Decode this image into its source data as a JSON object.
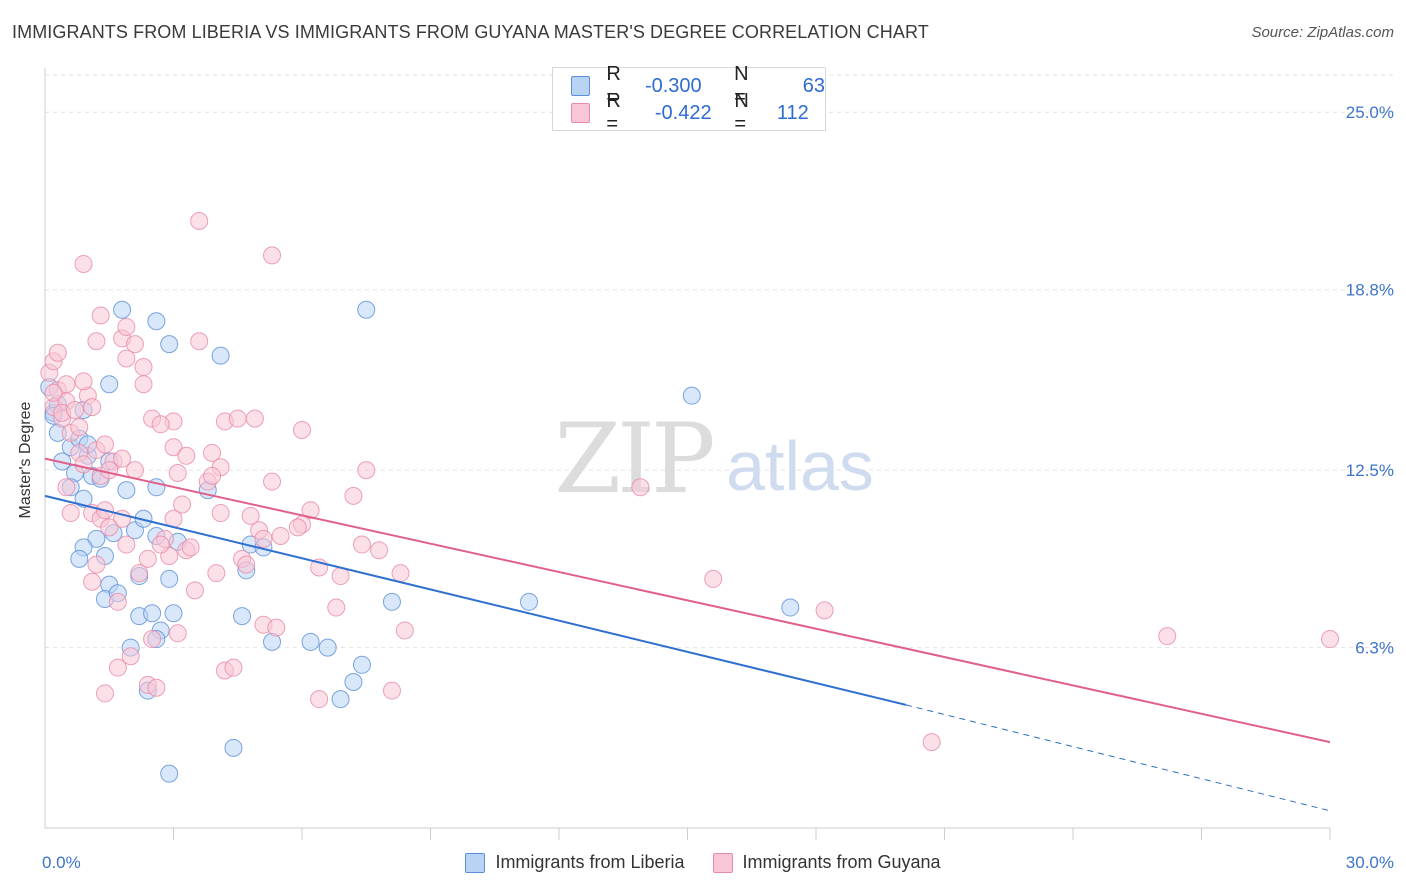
{
  "title": "IMMIGRANTS FROM LIBERIA VS IMMIGRANTS FROM GUYANA MASTER'S DEGREE CORRELATION CHART",
  "source": "Source: ZipAtlas.com",
  "watermark": {
    "zip": "ZIP",
    "atlas": "atlas"
  },
  "legend": {
    "rows": [
      {
        "r_label": "R =",
        "r_value": "-0.300",
        "n_label": "N =",
        "n_value": "63"
      },
      {
        "r_label": "R =",
        "r_value": "-0.422",
        "n_label": "N =",
        "n_value": "112"
      }
    ]
  },
  "colors": {
    "liberia_fill": "#b9d3f5",
    "liberia_stroke": "#5b8fd8",
    "liberia_line": "#2f6fd0",
    "guyana_fill": "#f8c6d6",
    "guyana_stroke": "#e88aa8",
    "guyana_line": "#e0608a",
    "grid": "#e2e2e2",
    "tick_label": "#3d74c9"
  },
  "chart_data": {
    "type": "scatter",
    "title": "IMMIGRANTS FROM LIBERIA VS IMMIGRANTS FROM GUYANA MASTER'S DEGREE CORRELATION CHART",
    "xlabel": "",
    "ylabel": "Master's Degree",
    "xlim": [
      0,
      30
    ],
    "ylim": [
      0,
      26.3
    ],
    "x_tick_labels": [
      {
        "value": 0,
        "label": "0.0%"
      },
      {
        "value": 30,
        "label": "30.0%"
      }
    ],
    "y_ticks": [
      {
        "value": 6.3,
        "label": "6.3%"
      },
      {
        "value": 12.5,
        "label": "12.5%"
      },
      {
        "value": 18.8,
        "label": "18.8%"
      },
      {
        "value": 25.0,
        "label": "25.0%"
      }
    ],
    "x_minor_ticks": [
      3,
      6,
      9,
      12,
      15,
      18,
      21,
      24,
      27,
      30
    ],
    "series": [
      {
        "name": "Immigrants from Liberia",
        "r": -0.3,
        "n": 63,
        "trend": {
          "x0": 0,
          "y0": 11.6,
          "x1": 20.1,
          "y1": 4.3,
          "dash_x_end": 30,
          "dash_y_end": 0.6
        },
        "points": [
          [
            0.1,
            15.4
          ],
          [
            0.2,
            14.5
          ],
          [
            0.3,
            14.8
          ],
          [
            0.6,
            13.3
          ],
          [
            0.4,
            12.8
          ],
          [
            0.7,
            12.4
          ],
          [
            0.8,
            13.6
          ],
          [
            0.6,
            11.9
          ],
          [
            1.0,
            13.0
          ],
          [
            1.1,
            12.3
          ],
          [
            0.9,
            11.5
          ],
          [
            1.3,
            12.2
          ],
          [
            1.5,
            12.8
          ],
          [
            1.9,
            11.8
          ],
          [
            1.6,
            10.3
          ],
          [
            1.2,
            10.1
          ],
          [
            1.4,
            9.5
          ],
          [
            0.9,
            9.8
          ],
          [
            0.8,
            9.4
          ],
          [
            2.1,
            10.4
          ],
          [
            2.3,
            10.8
          ],
          [
            2.6,
            10.2
          ],
          [
            3.1,
            10.0
          ],
          [
            1.5,
            8.5
          ],
          [
            1.4,
            8.0
          ],
          [
            1.7,
            8.2
          ],
          [
            2.2,
            8.8
          ],
          [
            2.9,
            8.7
          ],
          [
            2.2,
            7.4
          ],
          [
            2.5,
            7.5
          ],
          [
            3.0,
            7.5
          ],
          [
            4.6,
            7.4
          ],
          [
            4.8,
            9.9
          ],
          [
            5.1,
            9.8
          ],
          [
            4.7,
            9.0
          ],
          [
            2.0,
            6.3
          ],
          [
            2.7,
            6.9
          ],
          [
            2.6,
            6.6
          ],
          [
            5.3,
            6.5
          ],
          [
            6.2,
            6.5
          ],
          [
            6.6,
            6.3
          ],
          [
            7.4,
            5.7
          ],
          [
            8.1,
            7.9
          ],
          [
            7.2,
            5.1
          ],
          [
            6.9,
            4.5
          ],
          [
            11.3,
            7.9
          ],
          [
            15.1,
            15.1
          ],
          [
            17.4,
            7.7
          ],
          [
            7.5,
            18.1
          ],
          [
            4.1,
            16.5
          ],
          [
            2.6,
            17.7
          ],
          [
            2.9,
            16.9
          ],
          [
            1.8,
            18.1
          ],
          [
            1.5,
            15.5
          ],
          [
            0.9,
            14.6
          ],
          [
            1.0,
            13.4
          ],
          [
            3.8,
            11.8
          ],
          [
            2.6,
            11.9
          ],
          [
            2.4,
            4.8
          ],
          [
            4.4,
            2.8
          ],
          [
            2.9,
            1.9
          ],
          [
            0.2,
            14.4
          ],
          [
            0.3,
            13.8
          ]
        ]
      },
      {
        "name": "Immigrants from Guyana",
        "r": -0.422,
        "n": 112,
        "trend": {
          "x0": 0,
          "y0": 12.9,
          "x1": 30,
          "y1": 3.0
        },
        "points": [
          [
            0.1,
            15.9
          ],
          [
            0.2,
            16.3
          ],
          [
            0.3,
            15.3
          ],
          [
            0.2,
            14.7
          ],
          [
            0.4,
            14.3
          ],
          [
            0.5,
            14.9
          ],
          [
            0.6,
            13.8
          ],
          [
            0.3,
            16.6
          ],
          [
            0.5,
            15.5
          ],
          [
            0.8,
            13.1
          ],
          [
            1.0,
            15.1
          ],
          [
            0.9,
            15.6
          ],
          [
            1.1,
            14.7
          ],
          [
            1.2,
            13.2
          ],
          [
            1.4,
            13.4
          ],
          [
            1.3,
            12.3
          ],
          [
            0.9,
            12.7
          ],
          [
            1.6,
            12.8
          ],
          [
            1.8,
            12.9
          ],
          [
            2.1,
            12.5
          ],
          [
            1.2,
            17.0
          ],
          [
            1.8,
            17.1
          ],
          [
            2.1,
            16.9
          ],
          [
            1.9,
            16.4
          ],
          [
            1.3,
            17.9
          ],
          [
            1.9,
            17.5
          ],
          [
            2.3,
            16.1
          ],
          [
            2.3,
            15.5
          ],
          [
            2.5,
            14.3
          ],
          [
            3.0,
            14.2
          ],
          [
            0.9,
            19.7
          ],
          [
            3.6,
            21.2
          ],
          [
            5.3,
            20.0
          ],
          [
            3.6,
            17.0
          ],
          [
            4.2,
            14.2
          ],
          [
            4.5,
            14.3
          ],
          [
            4.9,
            14.3
          ],
          [
            6.0,
            13.9
          ],
          [
            3.0,
            13.3
          ],
          [
            3.3,
            13.0
          ],
          [
            3.9,
            13.1
          ],
          [
            4.1,
            12.6
          ],
          [
            3.1,
            12.4
          ],
          [
            3.8,
            12.1
          ],
          [
            5.3,
            12.1
          ],
          [
            7.2,
            11.6
          ],
          [
            7.5,
            12.5
          ],
          [
            6.2,
            11.1
          ],
          [
            6.0,
            10.6
          ],
          [
            5.0,
            10.4
          ],
          [
            5.1,
            10.1
          ],
          [
            4.1,
            11.0
          ],
          [
            3.2,
            11.3
          ],
          [
            3.0,
            10.8
          ],
          [
            2.8,
            10.1
          ],
          [
            3.3,
            9.7
          ],
          [
            2.9,
            9.5
          ],
          [
            2.4,
            9.4
          ],
          [
            1.8,
            10.8
          ],
          [
            1.9,
            9.9
          ],
          [
            1.1,
            11.0
          ],
          [
            1.3,
            10.8
          ],
          [
            1.5,
            10.5
          ],
          [
            0.6,
            11.0
          ],
          [
            1.2,
            9.2
          ],
          [
            1.1,
            8.6
          ],
          [
            1.7,
            7.9
          ],
          [
            3.5,
            8.3
          ],
          [
            4.0,
            8.9
          ],
          [
            4.6,
            9.4
          ],
          [
            4.7,
            9.2
          ],
          [
            5.5,
            10.2
          ],
          [
            6.4,
            9.1
          ],
          [
            6.9,
            8.8
          ],
          [
            7.4,
            9.9
          ],
          [
            7.8,
            9.7
          ],
          [
            8.3,
            8.9
          ],
          [
            6.8,
            7.7
          ],
          [
            5.1,
            7.1
          ],
          [
            5.4,
            7.0
          ],
          [
            3.1,
            6.8
          ],
          [
            2.5,
            6.6
          ],
          [
            2.0,
            6.0
          ],
          [
            4.2,
            5.5
          ],
          [
            4.4,
            5.6
          ],
          [
            1.7,
            5.6
          ],
          [
            1.4,
            4.7
          ],
          [
            2.4,
            5.0
          ],
          [
            2.6,
            4.9
          ],
          [
            6.4,
            4.5
          ],
          [
            8.1,
            4.8
          ],
          [
            8.4,
            6.9
          ],
          [
            13.9,
            11.9
          ],
          [
            15.6,
            8.7
          ],
          [
            18.2,
            7.6
          ],
          [
            26.2,
            6.7
          ],
          [
            30.0,
            6.6
          ],
          [
            20.7,
            3.0
          ],
          [
            0.4,
            14.5
          ],
          [
            0.7,
            14.6
          ],
          [
            0.2,
            15.2
          ],
          [
            0.8,
            14.0
          ],
          [
            1.5,
            12.5
          ],
          [
            2.7,
            14.1
          ],
          [
            3.9,
            12.3
          ],
          [
            4.8,
            10.9
          ],
          [
            5.9,
            10.5
          ],
          [
            3.4,
            9.8
          ],
          [
            2.7,
            9.9
          ],
          [
            1.4,
            11.1
          ],
          [
            2.2,
            8.9
          ],
          [
            0.5,
            11.9
          ]
        ]
      }
    ]
  },
  "bottom_legend": [
    {
      "label": "Immigrants from Liberia"
    },
    {
      "label": "Immigrants from Guyana"
    }
  ]
}
